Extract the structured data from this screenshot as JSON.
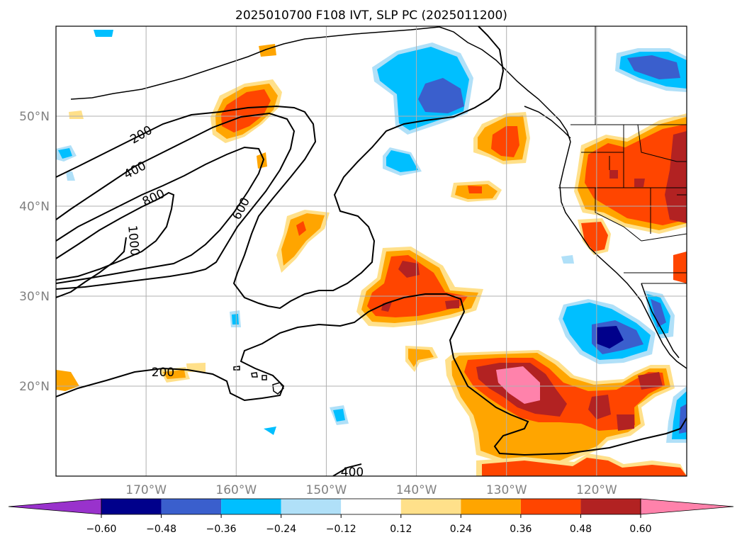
{
  "title": "2025010700 F108 IVT, SLP PC (2025011200)",
  "map": {
    "lon_range": [
      -180,
      -110
    ],
    "lat_range": [
      10,
      60
    ],
    "lon_ticks": [
      -170,
      -160,
      -150,
      -140,
      -130,
      -120
    ],
    "lat_ticks": [
      20,
      30,
      40,
      50
    ],
    "lon_tick_labels": [
      "170°W",
      "160°W",
      "150°W",
      "140°W",
      "130°W",
      "120°W"
    ],
    "lat_tick_labels": [
      "20°N",
      "30°N",
      "40°N",
      "50°N"
    ],
    "grid": true
  },
  "colorbar": {
    "levels": [
      -0.6,
      -0.48,
      -0.36,
      -0.24,
      -0.12,
      0.12,
      0.24,
      0.36,
      0.48,
      0.6
    ],
    "tick_labels": [
      "−0.60",
      "−0.48",
      "−0.36",
      "−0.24",
      "−0.12",
      "0.12",
      "0.24",
      "0.36",
      "0.48",
      "0.60"
    ],
    "colors": [
      "#9932cc",
      "#00008b",
      "#3a5fcd",
      "#00bfff",
      "#b0e0f8",
      "#ffffff",
      "#ffe08a",
      "#ffa500",
      "#ff4500",
      "#b22222",
      "#ff82ab"
    ],
    "extend": "both"
  },
  "ivt_contour_labels": [
    "200",
    "400",
    "600",
    "800",
    "1000",
    "200",
    "400"
  ]
}
